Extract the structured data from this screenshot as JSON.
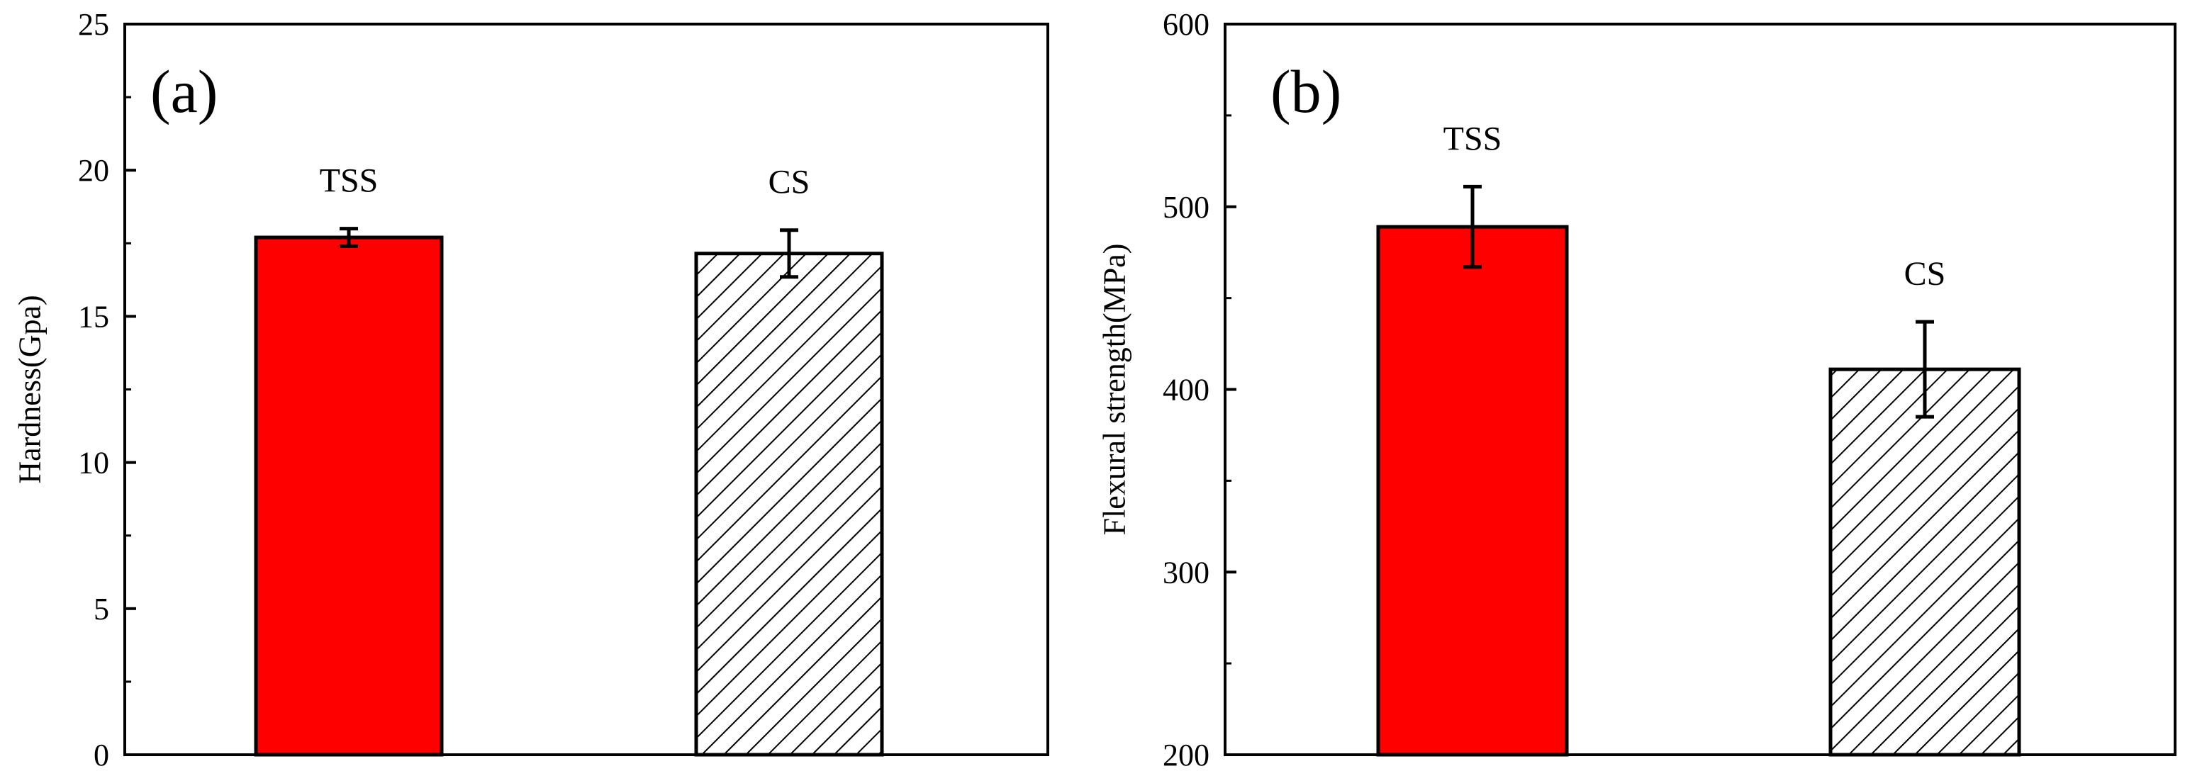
{
  "chart_data": [
    {
      "type": "bar",
      "panel_label": "(a)",
      "title": "",
      "xlabel": "",
      "ylabel": "Hardness(Gpa)",
      "ylim": [
        0,
        25
      ],
      "yticks": [
        "0",
        "5",
        "10",
        "15",
        "20",
        "25"
      ],
      "categories": [
        "TSS",
        "CS"
      ],
      "values": [
        17.7,
        17.15
      ],
      "errors": [
        0.3,
        0.8
      ],
      "fills": [
        "solid-red",
        "hatched"
      ],
      "colors": {
        "bar_red": "#ff0000",
        "hatch": "#000000",
        "background": "#ffffff"
      }
    },
    {
      "type": "bar",
      "panel_label": "(b)",
      "title": "",
      "xlabel": "",
      "ylabel": "Flexural strength(MPa)",
      "ylim": [
        200,
        600
      ],
      "yticks": [
        "200",
        "300",
        "400",
        "500",
        "600"
      ],
      "categories": [
        "TSS",
        "CS"
      ],
      "values": [
        489,
        411
      ],
      "errors": [
        22,
        26
      ],
      "fills": [
        "solid-red",
        "hatched"
      ],
      "colors": {
        "bar_red": "#ff0000",
        "hatch": "#000000",
        "background": "#ffffff"
      }
    }
  ]
}
